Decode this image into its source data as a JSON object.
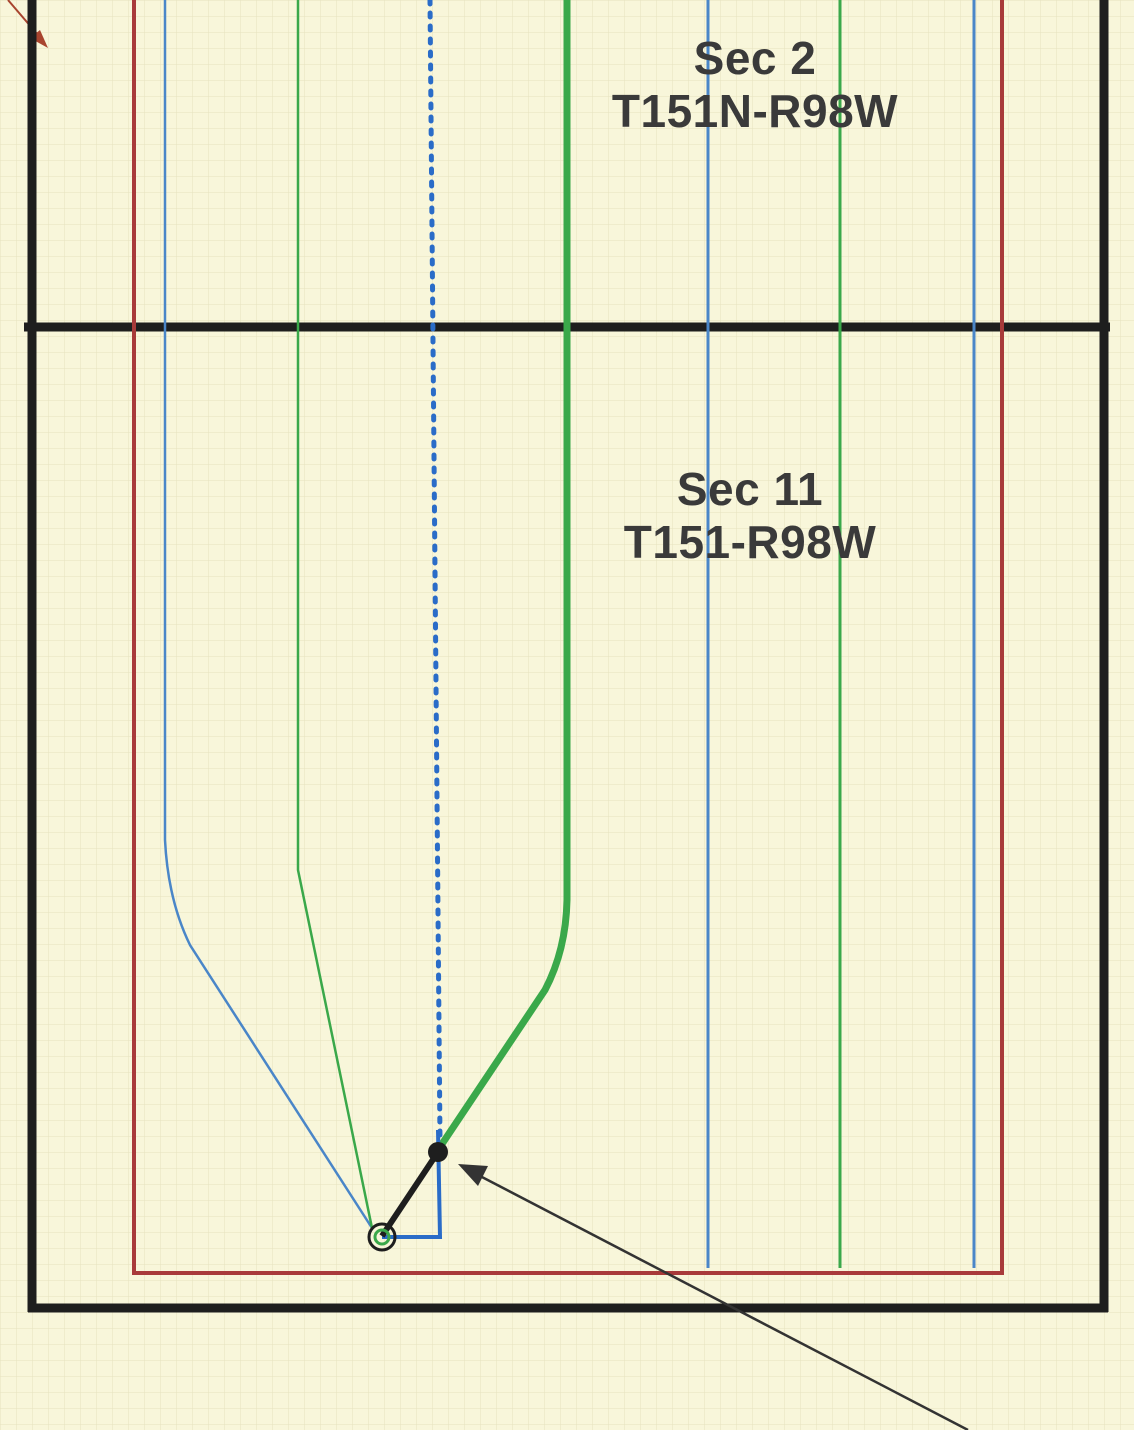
{
  "sections": [
    {
      "name": "Sec 2",
      "township_range": "T151N-R98W"
    },
    {
      "name": "Sec 11",
      "township_range": "T151-R98W"
    }
  ],
  "colors": {
    "background": "#f8f6da",
    "grid": "#e6e2bf",
    "section_boundary": "#1e1e1e",
    "setback_line": "#a83a3a",
    "blue_wellbore": "#4a86c8",
    "green_wellbore": "#3aa84a",
    "dotted_wellbore": "#2a6cc8",
    "arrow": "#333333",
    "label_text": "#3a3a3a"
  }
}
